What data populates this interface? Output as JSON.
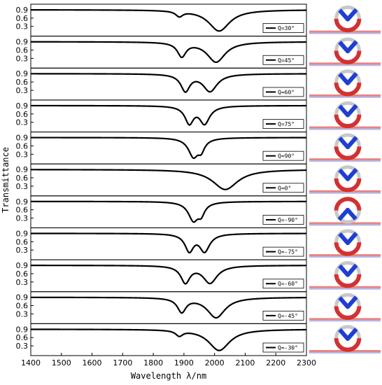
{
  "chart_data": {
    "type": "line",
    "xlabel": "Wavelength λ/nm",
    "ylabel": "Transmittance",
    "xlim": [
      1400,
      2300
    ],
    "xticks": [
      "1400",
      "1500",
      "1600",
      "1700",
      "1800",
      "1900",
      "2000",
      "2100",
      "2200",
      "2300"
    ],
    "ylim": [
      0.0,
      1.0
    ],
    "yticks": [
      "0.3",
      "0.6",
      "0.9"
    ],
    "grid": false,
    "legend_placement": "bottom-right of each panel",
    "series": [
      {
        "name": "Q=30°",
        "base": 0.9,
        "dips": [
          {
            "x": 1885,
            "depth": 0.23,
            "width": 14
          },
          {
            "x": 2015,
            "depth": 0.85,
            "width": 42
          }
        ]
      },
      {
        "name": "Q=45°",
        "base": 0.9,
        "dips": [
          {
            "x": 1893,
            "depth": 0.6,
            "width": 17
          },
          {
            "x": 2005,
            "depth": 0.82,
            "width": 36
          }
        ]
      },
      {
        "name": "Q=60°",
        "base": 0.9,
        "dips": [
          {
            "x": 1905,
            "depth": 0.72,
            "width": 18
          },
          {
            "x": 1985,
            "depth": 0.72,
            "width": 28
          }
        ]
      },
      {
        "name": "Q=75°",
        "base": 0.9,
        "dips": [
          {
            "x": 1918,
            "depth": 0.75,
            "width": 17
          },
          {
            "x": 1967,
            "depth": 0.75,
            "width": 20
          }
        ]
      },
      {
        "name": "Q=90°",
        "base": 0.9,
        "dips": [
          {
            "x": 1932,
            "depth": 0.8,
            "width": 20
          },
          {
            "x": 1955,
            "depth": 0.55,
            "width": 13
          }
        ]
      },
      {
        "name": "Q=0°",
        "base": 0.9,
        "dips": [
          {
            "x": 2035,
            "depth": 0.8,
            "width": 50
          }
        ]
      },
      {
        "name": "Q=-90°",
        "base": 0.9,
        "dips": [
          {
            "x": 1932,
            "depth": 0.8,
            "width": 20
          },
          {
            "x": 1955,
            "depth": 0.55,
            "width": 13
          }
        ]
      },
      {
        "name": "Q=-75°",
        "base": 0.9,
        "dips": [
          {
            "x": 1918,
            "depth": 0.75,
            "width": 17
          },
          {
            "x": 1967,
            "depth": 0.75,
            "width": 20
          }
        ]
      },
      {
        "name": "Q=-60°",
        "base": 0.9,
        "dips": [
          {
            "x": 1905,
            "depth": 0.72,
            "width": 18
          },
          {
            "x": 1985,
            "depth": 0.72,
            "width": 28
          }
        ]
      },
      {
        "name": "Q=-45°",
        "base": 0.9,
        "dips": [
          {
            "x": 1893,
            "depth": 0.6,
            "width": 17
          },
          {
            "x": 2005,
            "depth": 0.82,
            "width": 36
          }
        ]
      },
      {
        "name": "Q=-30°",
        "base": 0.9,
        "dips": [
          {
            "x": 1885,
            "depth": 0.23,
            "width": 14
          },
          {
            "x": 2015,
            "depth": 0.85,
            "width": 42
          }
        ]
      }
    ],
    "field_maps": [
      {
        "flip": false
      },
      {
        "flip": false
      },
      {
        "flip": false
      },
      {
        "flip": false
      },
      {
        "flip": false
      },
      {
        "flip": false
      },
      {
        "flip": true
      },
      {
        "flip": false
      },
      {
        "flip": false
      },
      {
        "flip": false
      },
      {
        "flip": false
      }
    ],
    "colors": {
      "line": "#000000",
      "field_positive": "#d42020",
      "field_negative": "#1f3fd0",
      "background": "#ffffff"
    }
  }
}
